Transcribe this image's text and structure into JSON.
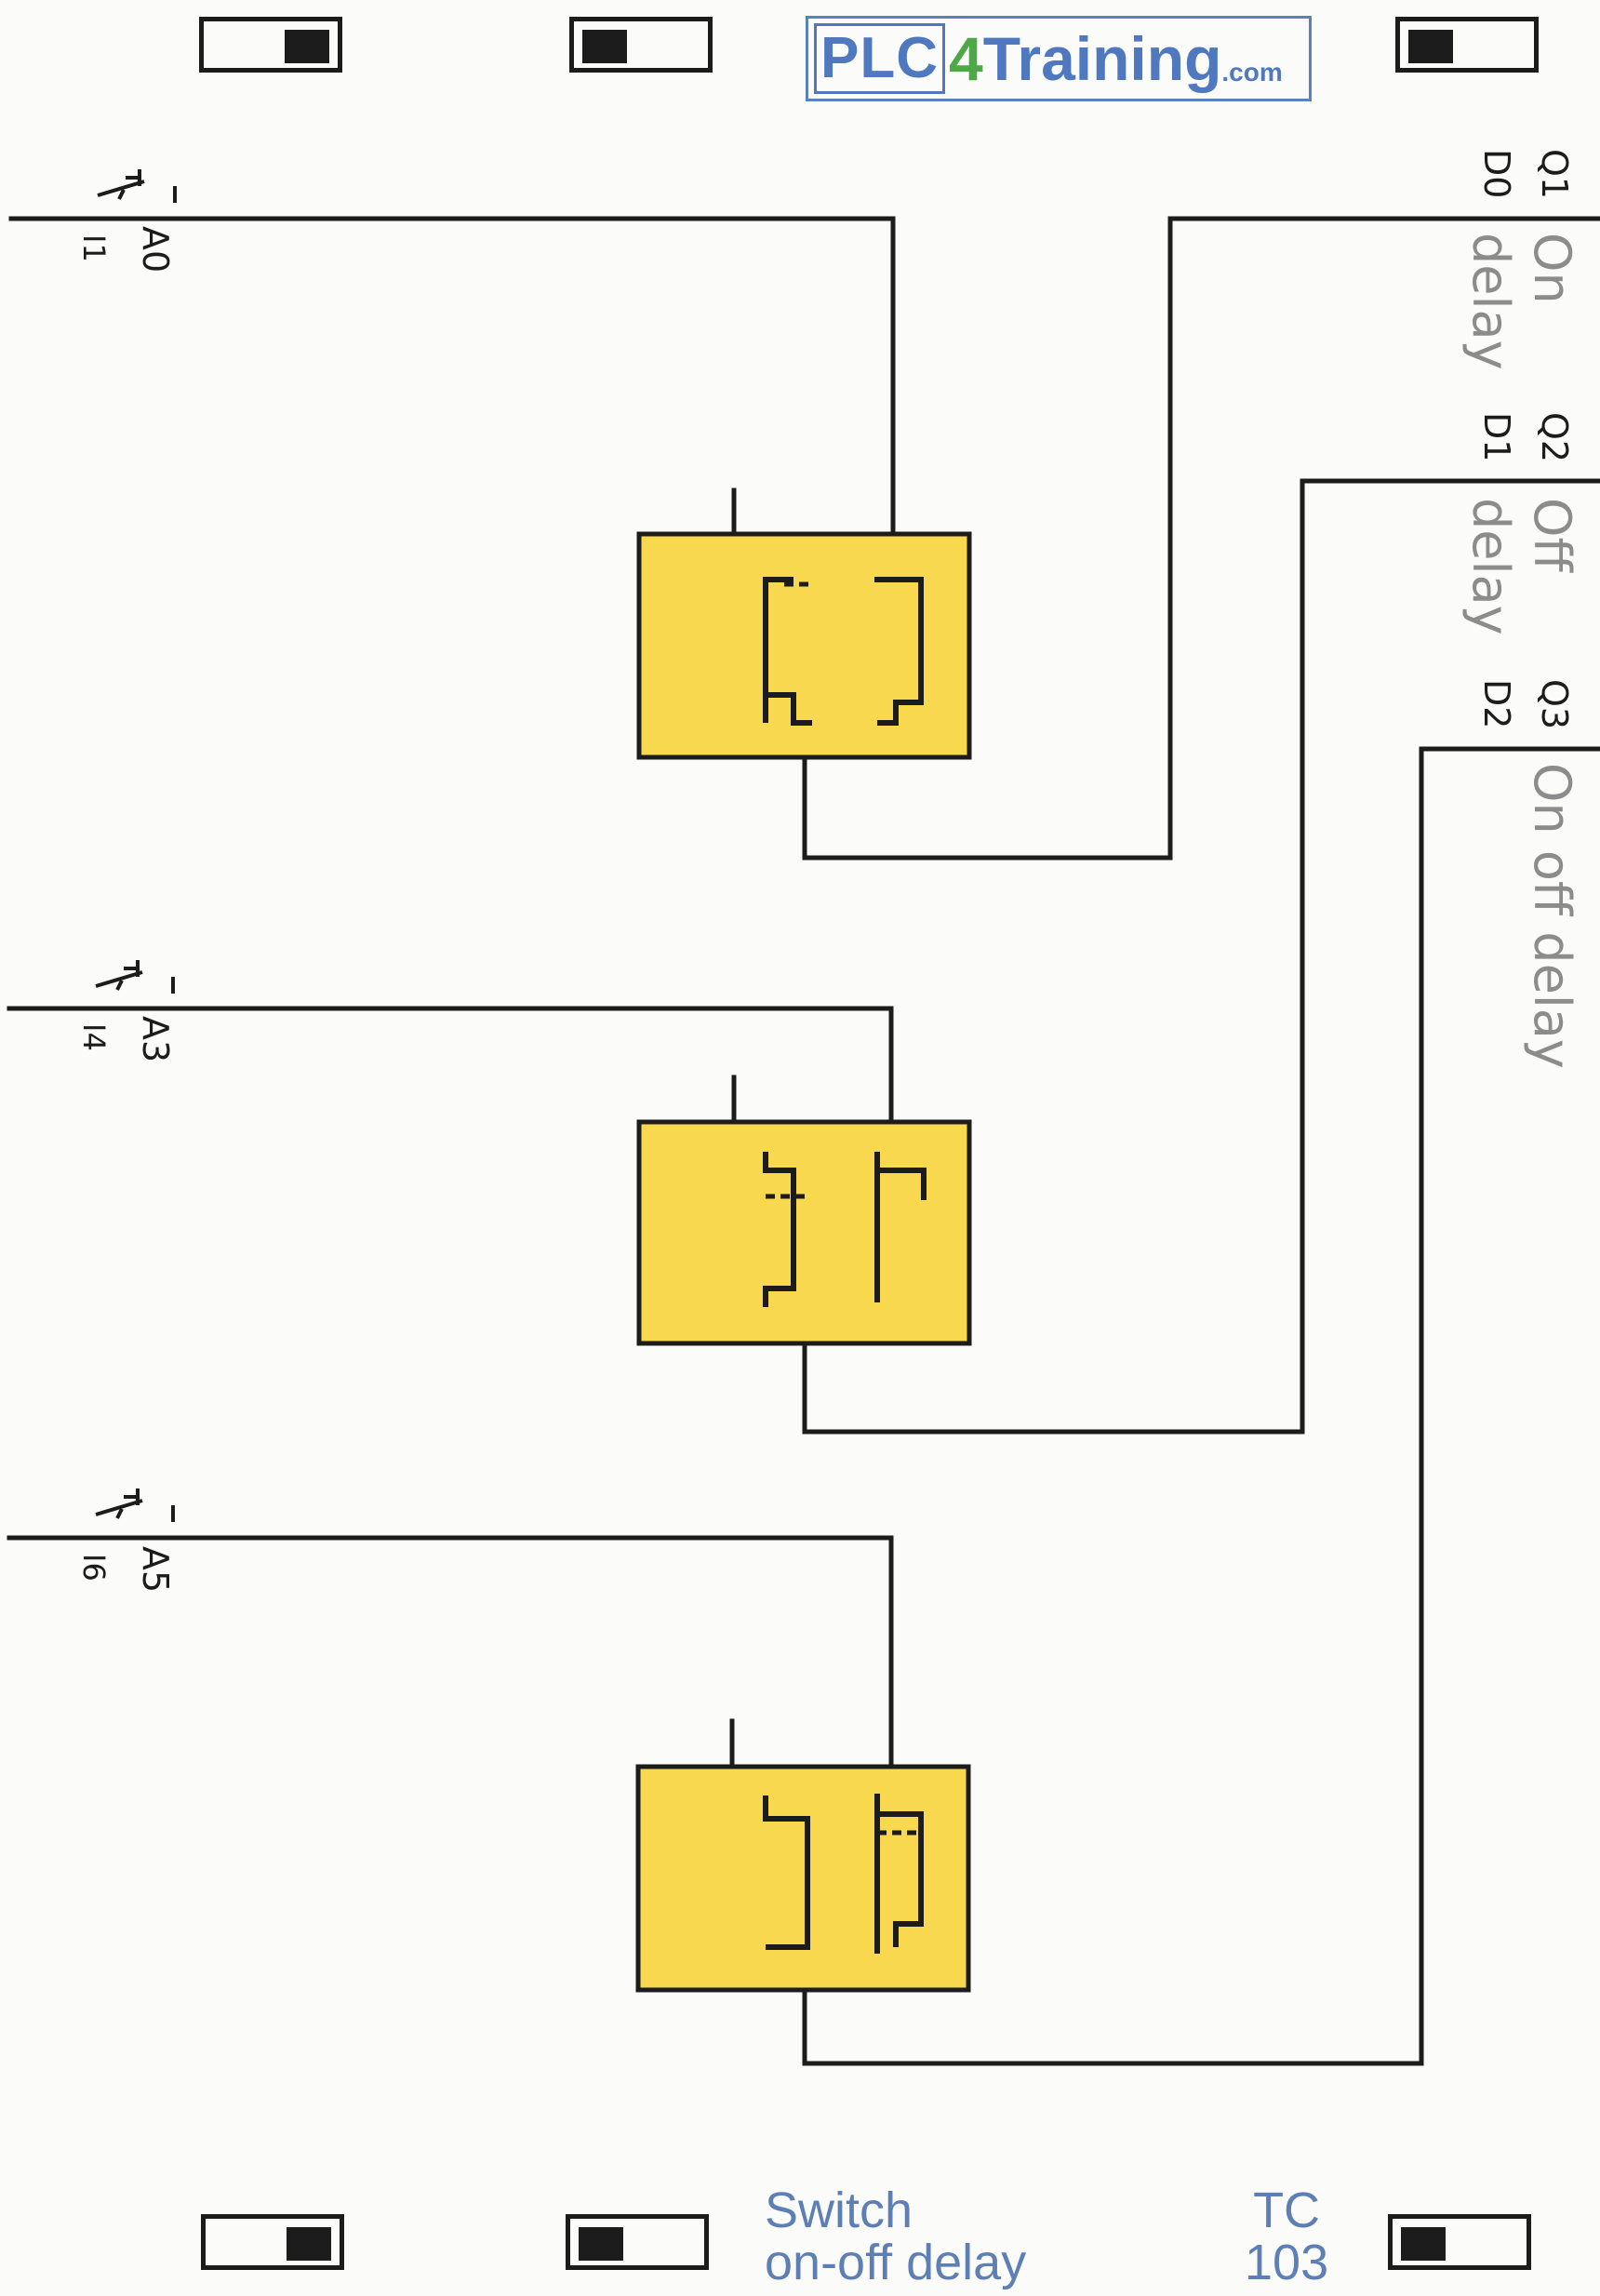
{
  "header": {
    "logo": {
      "part1": "PLC",
      "part2": "4",
      "part3": "Training",
      "part4": ".com"
    }
  },
  "inputs": [
    {
      "address": "A0",
      "input": "I1"
    },
    {
      "address": "A3",
      "input": "I4"
    },
    {
      "address": "A5",
      "input": "I6"
    }
  ],
  "outputs": [
    {
      "q": "Q1",
      "d": "D0",
      "description": [
        "On",
        "delay"
      ]
    },
    {
      "q": "Q2",
      "d": "D1",
      "description": [
        "Off",
        "delay"
      ]
    },
    {
      "q": "Q3",
      "d": "D2",
      "description": [
        "On off delay"
      ]
    }
  ],
  "footer": {
    "title_line1": "Switch",
    "title_line2": "on-off delay",
    "code_line1": "TC",
    "code_line2": "103"
  },
  "colors": {
    "block_fill": "#f7d84e",
    "line": "#1c1c1c",
    "label_gray": "#8c8c8c",
    "footer_blue": "#5e7fb6"
  }
}
